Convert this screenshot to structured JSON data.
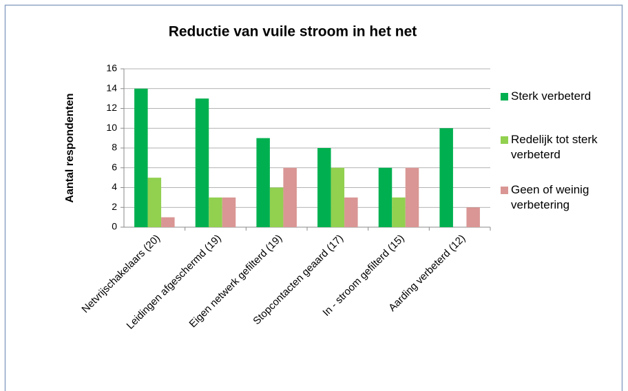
{
  "chart_data": {
    "type": "bar",
    "title": "Reductie van vuile stroom in het net",
    "y_label": "Aantal respondenten",
    "categories": [
      "Netvrijschakelaars (20)",
      "Leidingen afgeschermd (19)",
      "Eigen netwerk gefilterd (19)",
      "Stopcontacten geaard (17)",
      "In - stroom gefilterd (15)",
      "Aarding verbeterd (12)"
    ],
    "series": [
      {
        "name": "Sterk verbeterd",
        "color": "#00b050",
        "values": [
          14,
          13,
          9,
          8,
          6,
          10
        ]
      },
      {
        "name": "Redelijk tot sterk verbeterd",
        "color": "#92d050",
        "values": [
          5,
          3,
          4,
          6,
          3,
          0
        ]
      },
      {
        "name": "Geen of weinig verbetering",
        "color": "#d99694",
        "values": [
          1,
          3,
          6,
          3,
          6,
          2
        ]
      }
    ],
    "ylim": [
      0,
      16
    ],
    "yticks": [
      0,
      2,
      4,
      6,
      8,
      10,
      12,
      14,
      16
    ],
    "grid": true,
    "legend": "right"
  }
}
